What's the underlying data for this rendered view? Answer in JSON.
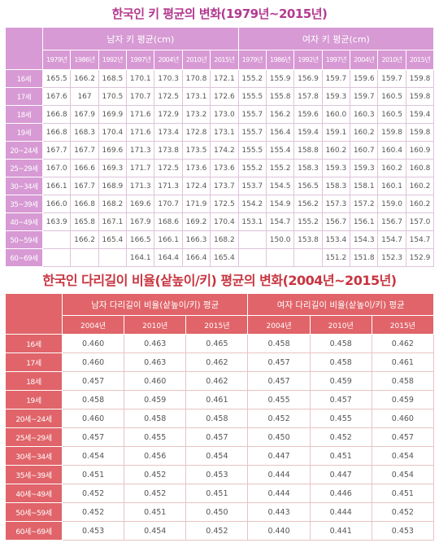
{
  "title1": "한국인 키 평균의 변화(1979년~2015년)",
  "title2": "한국인 다리길이 비율(샅높이/키) 평균의 변화(2004년~2015년)",
  "table1": {
    "male_header": "남자 키 평균(cm)",
    "female_header": "여자 키 평균(cm)",
    "years": [
      "1979년",
      "1986년",
      "1992년",
      "1997년",
      "2004년",
      "2010년",
      "2015년"
    ],
    "rows": [
      {
        "age": "16세",
        "male": [
          "165.5",
          "166.2",
          "168.5",
          "170.1",
          "170.3",
          "170.8",
          "172.1"
        ],
        "female": [
          "155.2",
          "155.9",
          "156.9",
          "159.7",
          "159.6",
          "159.7",
          "159.8"
        ]
      },
      {
        "age": "17세",
        "male": [
          "167.6",
          "167",
          "170.5",
          "170.7",
          "172.5",
          "173.1",
          "172.6"
        ],
        "female": [
          "155.5",
          "155.8",
          "157.8",
          "159.3",
          "159.7",
          "160.5",
          "159.8"
        ]
      },
      {
        "age": "18세",
        "male": [
          "166.8",
          "167.9",
          "169.9",
          "171.6",
          "172.9",
          "173.2",
          "173.0"
        ],
        "female": [
          "155.7",
          "156.2",
          "159.6",
          "160.0",
          "160.3",
          "160.5",
          "159.4"
        ]
      },
      {
        "age": "19세",
        "male": [
          "166.8",
          "168.3",
          "170.4",
          "171.6",
          "173.4",
          "172.8",
          "173.1"
        ],
        "female": [
          "155.7",
          "156.4",
          "159.4",
          "159.1",
          "160.2",
          "159.8",
          "159.8"
        ]
      },
      {
        "age": "20~24세",
        "male": [
          "167.7",
          "167.7",
          "169.6",
          "171.3",
          "173.8",
          "173.5",
          "174.2"
        ],
        "female": [
          "155.5",
          "155.4",
          "158.8",
          "160.2",
          "160.7",
          "160.4",
          "160.9"
        ]
      },
      {
        "age": "25~29세",
        "male": [
          "167.0",
          "166.6",
          "169.3",
          "171.7",
          "172.5",
          "173.6",
          "173.6"
        ],
        "female": [
          "155.2",
          "155.2",
          "158.3",
          "159.3",
          "159.3",
          "160.2",
          "160.8"
        ]
      },
      {
        "age": "30~34세",
        "male": [
          "166.1",
          "167.7",
          "168.9",
          "171.3",
          "171.3",
          "172.4",
          "173.7"
        ],
        "female": [
          "153.7",
          "154.5",
          "156.5",
          "158.3",
          "158.1",
          "160.1",
          "160.2"
        ]
      },
      {
        "age": "35~39세",
        "male": [
          "166.0",
          "166.8",
          "168.2",
          "169.6",
          "170.7",
          "171.9",
          "172.5"
        ],
        "female": [
          "154.2",
          "154.9",
          "156.2",
          "157.3",
          "157.2",
          "159.0",
          "160.2"
        ]
      },
      {
        "age": "40~49세",
        "male": [
          "163.9",
          "165.8",
          "167.1",
          "167.9",
          "168.6",
          "169.2",
          "170.4"
        ],
        "female": [
          "153.1",
          "154.7",
          "155.2",
          "156.7",
          "156.1",
          "156.7",
          "157.0"
        ]
      },
      {
        "age": "50~59세",
        "male": [
          "",
          "166.2",
          "165.4",
          "166.5",
          "166.1",
          "166.3",
          "168.2"
        ],
        "female": [
          "",
          "150.0",
          "153.8",
          "153.4",
          "154.3",
          "154.7",
          "154.7"
        ]
      },
      {
        "age": "60~69세",
        "male": [
          "",
          "",
          "",
          "164.1",
          "164.4",
          "166.4",
          "165.4"
        ],
        "female": [
          "",
          "",
          "",
          "151.2",
          "151.8",
          "152.3",
          "152.9"
        ]
      }
    ]
  },
  "table2": {
    "male_header": "남자 다리길이 비율(샅높이/키) 평균",
    "female_header": "여자 다리길이 비율(샅높이/키) 평균",
    "years": [
      "2004년",
      "2010년",
      "2015년"
    ],
    "rows": [
      {
        "age": "16세",
        "male": [
          "0.460",
          "0.463",
          "0.465"
        ],
        "female": [
          "0.458",
          "0.458",
          "0.462"
        ]
      },
      {
        "age": "17세",
        "male": [
          "0.460",
          "0.463",
          "0.462"
        ],
        "female": [
          "0.457",
          "0.458",
          "0.461"
        ]
      },
      {
        "age": "18세",
        "male": [
          "0.457",
          "0.460",
          "0.462"
        ],
        "female": [
          "0.457",
          "0.459",
          "0.458"
        ]
      },
      {
        "age": "19세",
        "male": [
          "0.458",
          "0.459",
          "0.461"
        ],
        "female": [
          "0.455",
          "0.457",
          "0.459"
        ]
      },
      {
        "age": "20세~24세",
        "male": [
          "0.460",
          "0.458",
          "0.458"
        ],
        "female": [
          "0.452",
          "0.455",
          "0.460"
        ]
      },
      {
        "age": "25세~29세",
        "male": [
          "0.457",
          "0.455",
          "0.457"
        ],
        "female": [
          "0.450",
          "0.452",
          "0.457"
        ]
      },
      {
        "age": "30세~34세",
        "male": [
          "0.454",
          "0.456",
          "0.454"
        ],
        "female": [
          "0.447",
          "0.451",
          "0.454"
        ]
      },
      {
        "age": "35세~39세",
        "male": [
          "0.451",
          "0.452",
          "0.453"
        ],
        "female": [
          "0.444",
          "0.447",
          "0.454"
        ]
      },
      {
        "age": "40세~49세",
        "male": [
          "0.452",
          "0.452",
          "0.451"
        ],
        "female": [
          "0.444",
          "0.446",
          "0.451"
        ]
      },
      {
        "age": "50세~59세",
        "male": [
          "0.452",
          "0.451",
          "0.450"
        ],
        "female": [
          "0.443",
          "0.444",
          "0.452"
        ]
      },
      {
        "age": "60세~69세",
        "male": [
          "0.453",
          "0.454",
          "0.452"
        ],
        "female": [
          "0.440",
          "0.441",
          "0.453"
        ]
      }
    ]
  }
}
